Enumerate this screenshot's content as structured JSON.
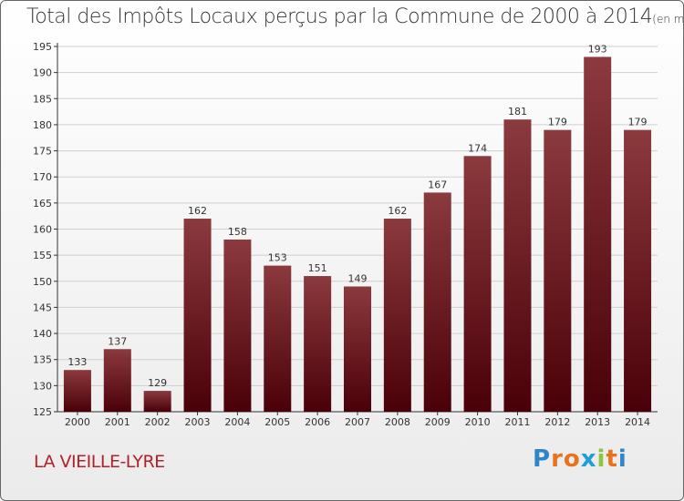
{
  "title": {
    "main": "Total des Impôts Locaux perçus par la Commune de 2000 à 2014",
    "unit": "(en milliers d'€)"
  },
  "commune": "LA VIEILLE-LYRE",
  "logo": {
    "text": "Proxiti",
    "letter_colors": [
      "#2e86c8",
      "#e8731c",
      "#e8731c",
      "#1f9fd8",
      "#8cc63f",
      "#e8731c",
      "#2e86c8"
    ]
  },
  "chart_data": {
    "type": "bar",
    "categories": [
      "2000",
      "2001",
      "2002",
      "2003",
      "2004",
      "2005",
      "2006",
      "2007",
      "2008",
      "2009",
      "2010",
      "2011",
      "2012",
      "2013",
      "2014"
    ],
    "values": [
      133,
      137,
      129,
      162,
      158,
      153,
      151,
      149,
      162,
      167,
      174,
      181,
      179,
      193,
      179
    ],
    "ylim": [
      125,
      195
    ],
    "yticks": [
      125,
      130,
      135,
      140,
      145,
      150,
      155,
      160,
      165,
      170,
      175,
      180,
      185,
      190,
      195
    ],
    "grid": true,
    "bar_color_top": "#8b3a3e",
    "bar_color_bottom": "#4a0008"
  }
}
